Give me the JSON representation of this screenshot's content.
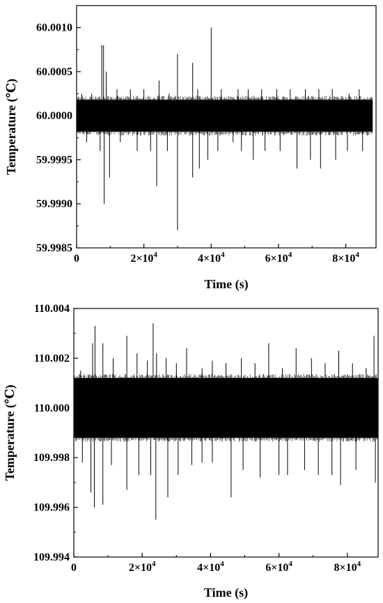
{
  "chart_data": [
    {
      "type": "line",
      "xlabel": "Time (s)",
      "ylabel": "Temperature (℃)",
      "xlim": [
        0,
        89000
      ],
      "ylim": [
        59.9985,
        60.00125
      ],
      "grid": false,
      "x_ticks": [
        {
          "value": 0,
          "mantissa": "0",
          "exponent": ""
        },
        {
          "value": 20000,
          "mantissa": "2×10",
          "exponent": "4"
        },
        {
          "value": 40000,
          "mantissa": "4×10",
          "exponent": "4"
        },
        {
          "value": 60000,
          "mantissa": "6×10",
          "exponent": "4"
        },
        {
          "value": 80000,
          "mantissa": "8×10",
          "exponent": "4"
        }
      ],
      "y_ticks": [
        {
          "value": 60.001,
          "label": "60.0010"
        },
        {
          "value": 60.0005,
          "label": "60.0005"
        },
        {
          "value": 60.0,
          "label": "60.0000"
        },
        {
          "value": 59.9995,
          "label": "59.9995"
        },
        {
          "value": 59.999,
          "label": "59.9990"
        },
        {
          "value": 59.9985,
          "label": "59.9985"
        }
      ],
      "series": [
        {
          "color": "#000000",
          "baseline": 60.0,
          "dense_band": [
            59.99982,
            60.00018
          ],
          "x_extent": [
            0,
            88000
          ],
          "spikes": [
            [
              1500,
              60.00025
            ],
            [
              4500,
              60.00025
            ],
            [
              7500,
              60.0008
            ],
            [
              8000,
              60.0008
            ],
            [
              8800,
              60.0005
            ],
            [
              12000,
              60.0003
            ],
            [
              16000,
              60.0003
            ],
            [
              20000,
              60.0003
            ],
            [
              24500,
              60.0004
            ],
            [
              27500,
              60.00025
            ],
            [
              30000,
              60.0007
            ],
            [
              34500,
              60.0006
            ],
            [
              36000,
              60.0003
            ],
            [
              40000,
              60.001
            ],
            [
              43000,
              60.0003
            ],
            [
              48000,
              60.0003
            ],
            [
              51000,
              60.0003
            ],
            [
              55000,
              60.0003
            ],
            [
              59500,
              60.0003
            ],
            [
              63500,
              60.0003
            ],
            [
              68000,
              60.0003
            ],
            [
              72000,
              60.0003
            ],
            [
              76000,
              60.0003
            ],
            [
              81000,
              60.00025
            ],
            [
              84000,
              60.0003
            ],
            [
              3000,
              59.9997
            ],
            [
              7000,
              59.9996
            ],
            [
              8200,
              59.999
            ],
            [
              9800,
              59.9993
            ],
            [
              13000,
              59.9997
            ],
            [
              18000,
              59.9996
            ],
            [
              22000,
              59.9996
            ],
            [
              23800,
              59.9992
            ],
            [
              27000,
              59.9996
            ],
            [
              30000,
              59.9987
            ],
            [
              34500,
              59.9993
            ],
            [
              36500,
              59.9994
            ],
            [
              39000,
              59.9995
            ],
            [
              42000,
              59.9996
            ],
            [
              46500,
              59.9997
            ],
            [
              49000,
              59.9996
            ],
            [
              52500,
              59.9995
            ],
            [
              56000,
              59.9996
            ],
            [
              60500,
              59.9996
            ],
            [
              65500,
              59.9994
            ],
            [
              69500,
              59.9995
            ],
            [
              72500,
              59.9994
            ],
            [
              77000,
              59.9995
            ],
            [
              80500,
              59.9996
            ],
            [
              85000,
              59.9996
            ]
          ]
        }
      ]
    },
    {
      "type": "line",
      "xlabel": "Time (s)",
      "ylabel": "Temperature (℃)",
      "xlim": [
        0,
        89000
      ],
      "ylim": [
        109.994,
        110.004
      ],
      "grid": false,
      "x_ticks": [
        {
          "value": 0,
          "mantissa": "0",
          "exponent": ""
        },
        {
          "value": 20000,
          "mantissa": "2×10",
          "exponent": "4"
        },
        {
          "value": 40000,
          "mantissa": "4×10",
          "exponent": "4"
        },
        {
          "value": 60000,
          "mantissa": "6×10",
          "exponent": "4"
        },
        {
          "value": 80000,
          "mantissa": "8×10",
          "exponent": "4"
        }
      ],
      "y_ticks": [
        {
          "value": 110.004,
          "label": "110.004"
        },
        {
          "value": 110.002,
          "label": "110.002"
        },
        {
          "value": 110.0,
          "label": "110.000"
        },
        {
          "value": 109.998,
          "label": "109.998"
        },
        {
          "value": 109.996,
          "label": "109.996"
        },
        {
          "value": 109.994,
          "label": "109.994"
        }
      ],
      "series": [
        {
          "color": "#000000",
          "baseline": 110.0,
          "dense_band": [
            109.9988,
            110.0012
          ],
          "x_extent": [
            0,
            89000
          ],
          "spikes": [
            [
              2000,
              110.0015
            ],
            [
              5500,
              110.0026
            ],
            [
              6200,
              110.0033
            ],
            [
              8500,
              110.0026
            ],
            [
              11500,
              110.002
            ],
            [
              15500,
              110.0029
            ],
            [
              18500,
              110.0022
            ],
            [
              21500,
              110.0019
            ],
            [
              23200,
              110.0034
            ],
            [
              24200,
              110.0022
            ],
            [
              27000,
              110.002
            ],
            [
              30000,
              110.0018
            ],
            [
              33000,
              110.0024
            ],
            [
              37500,
              110.0016
            ],
            [
              40500,
              110.0019
            ],
            [
              44500,
              110.0018
            ],
            [
              49000,
              110.002
            ],
            [
              53000,
              110.0018
            ],
            [
              57000,
              110.0026
            ],
            [
              61000,
              110.0016
            ],
            [
              65000,
              110.0024
            ],
            [
              69500,
              110.002
            ],
            [
              73500,
              110.0018
            ],
            [
              77500,
              110.0023
            ],
            [
              81500,
              110.0018
            ],
            [
              85500,
              110.0016
            ],
            [
              87800,
              110.0029
            ],
            [
              2500,
              109.9978
            ],
            [
              5000,
              109.9966
            ],
            [
              6000,
              109.996
            ],
            [
              8500,
              109.9961
            ],
            [
              11000,
              109.9977
            ],
            [
              15500,
              109.9967
            ],
            [
              19000,
              109.9973
            ],
            [
              22500,
              109.9973
            ],
            [
              24000,
              109.9955
            ],
            [
              27500,
              109.9964
            ],
            [
              30500,
              109.9973
            ],
            [
              34500,
              109.9977
            ],
            [
              37500,
              109.9978
            ],
            [
              40500,
              109.9978
            ],
            [
              46000,
              109.9964
            ],
            [
              49500,
              109.9975
            ],
            [
              54500,
              109.9972
            ],
            [
              60000,
              109.9973
            ],
            [
              62500,
              109.9973
            ],
            [
              67500,
              109.9975
            ],
            [
              71500,
              109.9973
            ],
            [
              75500,
              109.9973
            ],
            [
              78000,
              109.9969
            ],
            [
              82500,
              109.9975
            ],
            [
              88200,
              109.997
            ]
          ]
        }
      ]
    }
  ]
}
